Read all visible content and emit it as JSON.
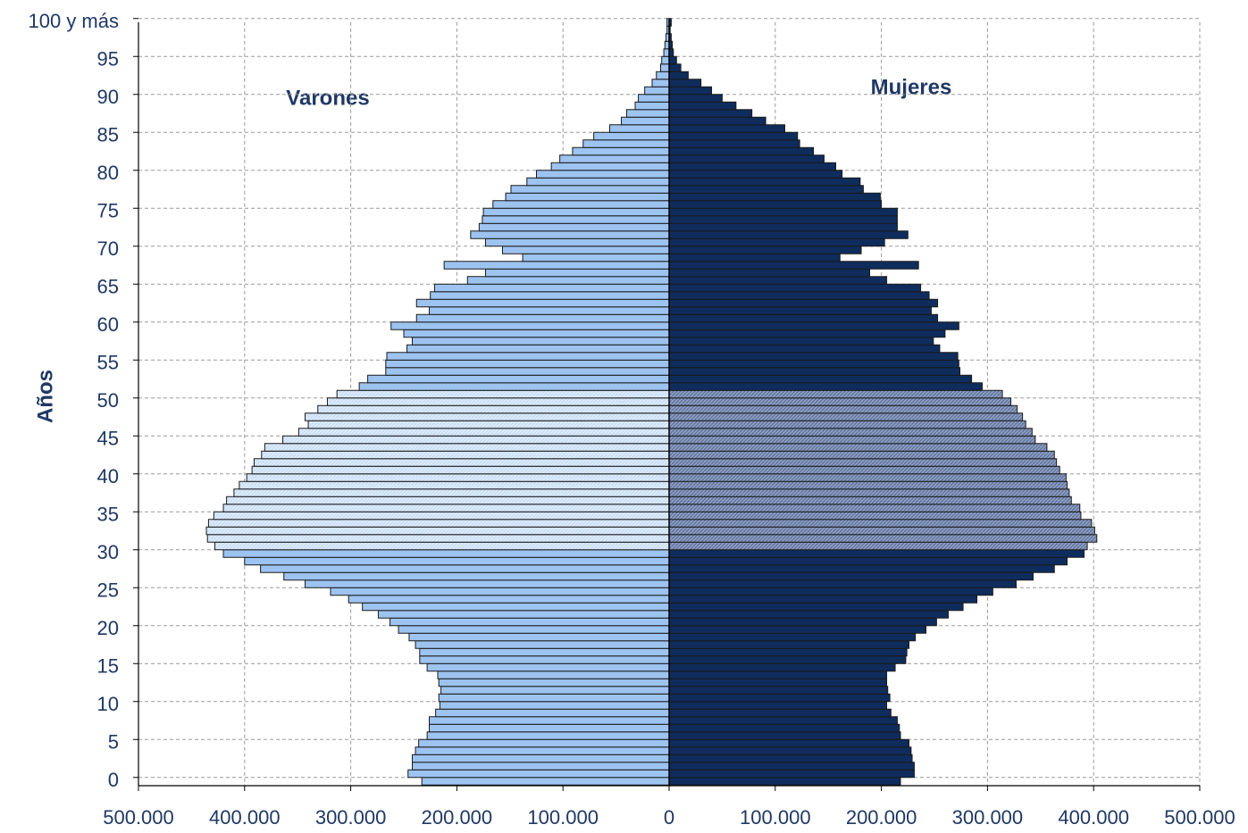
{
  "chart_data": {
    "type": "pyramid",
    "y_label": "Años",
    "ages": [
      0,
      1,
      2,
      3,
      4,
      5,
      6,
      7,
      8,
      9,
      10,
      11,
      12,
      13,
      14,
      15,
      16,
      17,
      18,
      19,
      20,
      21,
      22,
      23,
      24,
      25,
      26,
      27,
      28,
      29,
      30,
      31,
      32,
      33,
      34,
      35,
      36,
      37,
      38,
      39,
      40,
      41,
      42,
      43,
      44,
      45,
      46,
      47,
      48,
      49,
      50,
      51,
      52,
      53,
      54,
      55,
      56,
      57,
      58,
      59,
      60,
      61,
      62,
      63,
      64,
      65,
      66,
      67,
      68,
      69,
      70,
      71,
      72,
      73,
      74,
      75,
      76,
      77,
      78,
      79,
      80,
      81,
      82,
      83,
      84,
      85,
      86,
      87,
      88,
      89,
      90,
      91,
      92,
      93,
      94,
      95,
      96,
      97,
      98,
      99,
      100
    ],
    "series": [
      {
        "name": "Varones",
        "color": "#9dc3f0",
        "highlight_color": "#dcebfa",
        "values": [
          -233000,
          -246000,
          -242000,
          -242000,
          -239000,
          -236000,
          -228000,
          -226000,
          -226000,
          -220000,
          -216000,
          -217000,
          -215000,
          -217000,
          -218000,
          -228000,
          -235000,
          -235000,
          -239000,
          -245000,
          -255000,
          -263000,
          -274000,
          -289000,
          -302000,
          -319000,
          -343000,
          -363000,
          -385000,
          -400000,
          -420000,
          -428000,
          -435000,
          -436000,
          -434000,
          -429000,
          -420000,
          -417000,
          -410000,
          -405000,
          -398000,
          -393000,
          -391000,
          -384000,
          -381000,
          -364000,
          -349000,
          -340000,
          -343000,
          -331000,
          -322000,
          -313000,
          -292000,
          -284000,
          -267000,
          -267000,
          -266000,
          -247000,
          -242000,
          -250000,
          -262000,
          -238000,
          -226000,
          -238000,
          -225000,
          -221000,
          -190000,
          -173000,
          -212000,
          -138000,
          -157000,
          -173000,
          -187000,
          -179000,
          -176000,
          -175000,
          -166000,
          -154000,
          -149000,
          -134000,
          -125000,
          -111000,
          -103000,
          -91000,
          -81000,
          -71000,
          -56000,
          -45000,
          -40000,
          -32000,
          -29000,
          -23000,
          -16000,
          -12000,
          -8000,
          -7000,
          -5000,
          -4000,
          -3000,
          -2000,
          -2000
        ]
      },
      {
        "name": "Mujeres",
        "color": "#0e2c5c",
        "highlight_color": "#8a9bc0",
        "values": [
          218000,
          231000,
          231000,
          229000,
          228000,
          226000,
          218000,
          217000,
          215000,
          209000,
          205000,
          208000,
          206000,
          205000,
          205000,
          213000,
          223000,
          224000,
          226000,
          232000,
          242000,
          252000,
          263000,
          277000,
          290000,
          305000,
          327000,
          343000,
          363000,
          375000,
          391000,
          394000,
          403000,
          401000,
          398000,
          388000,
          387000,
          379000,
          377000,
          375000,
          374000,
          368000,
          365000,
          363000,
          356000,
          345000,
          342000,
          336000,
          333000,
          328000,
          322000,
          314000,
          295000,
          285000,
          274000,
          273000,
          272000,
          255000,
          249000,
          260000,
          273000,
          253000,
          247000,
          253000,
          245000,
          237000,
          205000,
          189000,
          235000,
          161000,
          181000,
          203000,
          225000,
          215000,
          215000,
          215000,
          200000,
          199000,
          183000,
          180000,
          163000,
          157000,
          146000,
          136000,
          123000,
          121000,
          109000,
          91000,
          78000,
          63000,
          50000,
          40000,
          30000,
          18000,
          11000,
          7000,
          4000,
          3000,
          2000,
          1000,
          2000
        ]
      }
    ],
    "highlight_ages": [
      31,
      51
    ],
    "xlim": [
      -500000,
      500000
    ],
    "xticks": [
      {
        "value": -500000,
        "label": "500.000"
      },
      {
        "value": -400000,
        "label": "400.000"
      },
      {
        "value": -300000,
        "label": "300.000"
      },
      {
        "value": -200000,
        "label": "200.000"
      },
      {
        "value": -100000,
        "label": "100.000"
      },
      0,
      {
        "value": 100000,
        "label": "100.000"
      },
      {
        "value": 200000,
        "label": "200.000"
      },
      {
        "value": 300000,
        "label": "300.000"
      },
      {
        "value": 400000,
        "label": "400.000"
      },
      {
        "value": 500000,
        "label": "500.000"
      }
    ],
    "ylim": [
      -0.5,
      100.5
    ],
    "yticks": [
      0,
      5,
      10,
      15,
      20,
      25,
      30,
      35,
      40,
      45,
      50,
      55,
      60,
      65,
      70,
      75,
      80,
      85,
      90,
      95,
      {
        "value": 100,
        "label": "100 y más"
      }
    ],
    "grid": true
  }
}
